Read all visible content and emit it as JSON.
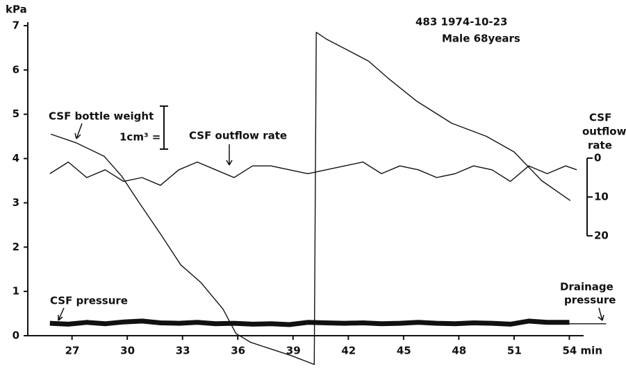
{
  "chart_data": {
    "type": "line",
    "ylabel": "kPa",
    "y2label": [
      "CSF",
      "outflow",
      "rate"
    ],
    "header": [
      "483   1974-10-23",
      "Male 68years"
    ],
    "scale_note": "1cm³ =",
    "drainage_label": [
      "Drainage",
      "pressure"
    ],
    "xlim": [
      24.6,
      57
    ],
    "xticks": [
      27,
      30,
      33,
      36,
      39,
      42,
      45,
      48,
      51,
      {
        "value": 54,
        "label": "54 min"
      }
    ],
    "ylim": [
      0,
      7
    ],
    "yticks": [
      0,
      1,
      2,
      3,
      4,
      5,
      6,
      7
    ],
    "y2lim": [
      45.7,
      -34.1
    ],
    "y2ticks": [
      0,
      10,
      20
    ],
    "series": [
      {
        "name": "CSF bottle weight",
        "color": "#111111",
        "x": [
          25.85,
          27.25,
          28.75,
          29.7,
          30.65,
          31.8,
          32.9,
          34.0,
          35.2,
          35.9,
          36.7,
          37.8,
          38.9,
          40.15,
          40.26,
          40.8,
          41.95,
          43.1,
          44.2,
          45.7,
          47.6,
          49.5,
          51.0,
          52.5,
          54.05
        ],
        "values": [
          4.55,
          4.35,
          4.05,
          3.6,
          3.0,
          2.3,
          1.6,
          1.2,
          0.6,
          0.05,
          -0.15,
          -0.3,
          -0.45,
          -0.65,
          6.85,
          6.7,
          6.45,
          6.2,
          5.8,
          5.3,
          4.8,
          4.5,
          4.15,
          3.5,
          3.05
        ]
      },
      {
        "name": "CSF outflow rate",
        "color": "#111111",
        "axis": "y2",
        "x": [
          25.8,
          26.8,
          27.8,
          28.8,
          29.8,
          30.8,
          31.8,
          32.8,
          33.8,
          34.8,
          35.8,
          36.8,
          37.8,
          38.8,
          39.8,
          40.8,
          41.8,
          42.8,
          43.8,
          44.8,
          45.8,
          46.8,
          47.8,
          48.8,
          49.8,
          50.8,
          51.8,
          52.8,
          53.8,
          54.4
        ],
        "values": [
          4,
          1,
          5,
          3,
          6,
          5,
          7,
          3,
          1,
          3,
          5,
          2,
          2,
          3,
          4,
          3,
          2,
          1,
          4,
          2,
          3,
          5,
          4,
          2,
          3,
          6,
          2,
          4,
          2,
          3
        ]
      },
      {
        "name": "CSF pressure",
        "color": "#111111",
        "x": [
          25.8,
          26.8,
          27.8,
          28.8,
          29.8,
          30.8,
          31.8,
          32.8,
          33.8,
          34.8,
          35.8,
          36.8,
          37.8,
          38.8,
          39.8,
          40.8,
          41.8,
          42.8,
          43.8,
          44.8,
          45.8,
          46.8,
          47.8,
          48.8,
          49.8,
          50.8,
          51.8,
          52.8,
          54.0
        ],
        "values": [
          0.28,
          0.26,
          0.3,
          0.27,
          0.31,
          0.33,
          0.29,
          0.28,
          0.3,
          0.27,
          0.28,
          0.26,
          0.27,
          0.25,
          0.3,
          0.29,
          0.28,
          0.29,
          0.27,
          0.28,
          0.3,
          0.28,
          0.27,
          0.29,
          0.28,
          0.26,
          0.33,
          0.3,
          0.3
        ]
      },
      {
        "color": "#111111",
        "x": [
          54.0,
          56.0
        ],
        "values": [
          0.27,
          0.27
        ]
      }
    ]
  }
}
